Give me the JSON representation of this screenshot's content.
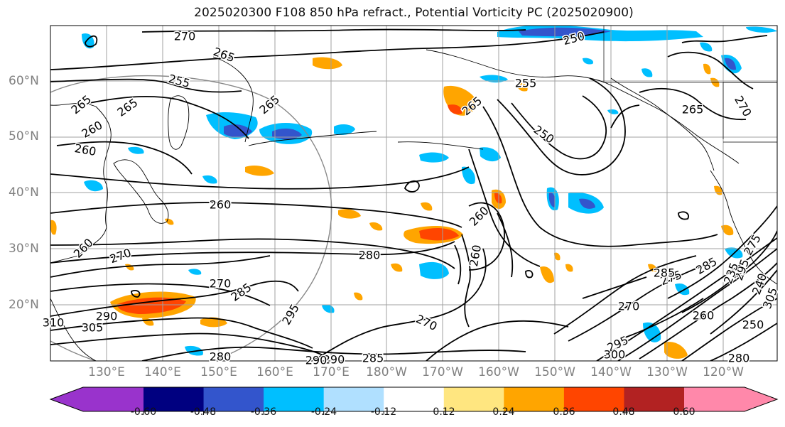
{
  "title": "2025020300 F108 850 hPa refract., Potential Vorticity PC (2025020900)",
  "latitude_labels": [
    "60°N",
    "50°N",
    "40°N",
    "30°N",
    "20°N"
  ],
  "longitude_labels": [
    "130°E",
    "140°E",
    "150°E",
    "160°E",
    "170°E",
    "180°W",
    "170°W",
    "160°W",
    "150°W",
    "140°W",
    "130°W",
    "120°W"
  ],
  "contour_labels": [
    "270",
    "265",
    "255",
    "265",
    "265",
    "260",
    "260",
    "265",
    "260",
    "270",
    "280",
    "285",
    "290",
    "305",
    "310",
    "295",
    "270",
    "260",
    "260",
    "250",
    "255",
    "260",
    "265",
    "265",
    "270",
    "250",
    "270",
    "275",
    "285",
    "295",
    "300",
    "290",
    "285",
    "290",
    "285",
    "280",
    "270",
    "280",
    "275",
    "260",
    "250",
    "295",
    "305",
    "235",
    "240"
  ],
  "colorbar": {
    "colors": [
      "#9933cc",
      "#000080",
      "#3355cc",
      "#00bfff",
      "#b0e0ff",
      "#ffffff",
      "#ffe680",
      "#ffa500",
      "#ff4500",
      "#b22222",
      "#ff88aa"
    ],
    "tick_labels": [
      "-0.60",
      "-0.48",
      "-0.36",
      "-0.24",
      "-0.12",
      "0.12",
      "0.24",
      "0.36",
      "0.48",
      "0.60"
    ]
  }
}
